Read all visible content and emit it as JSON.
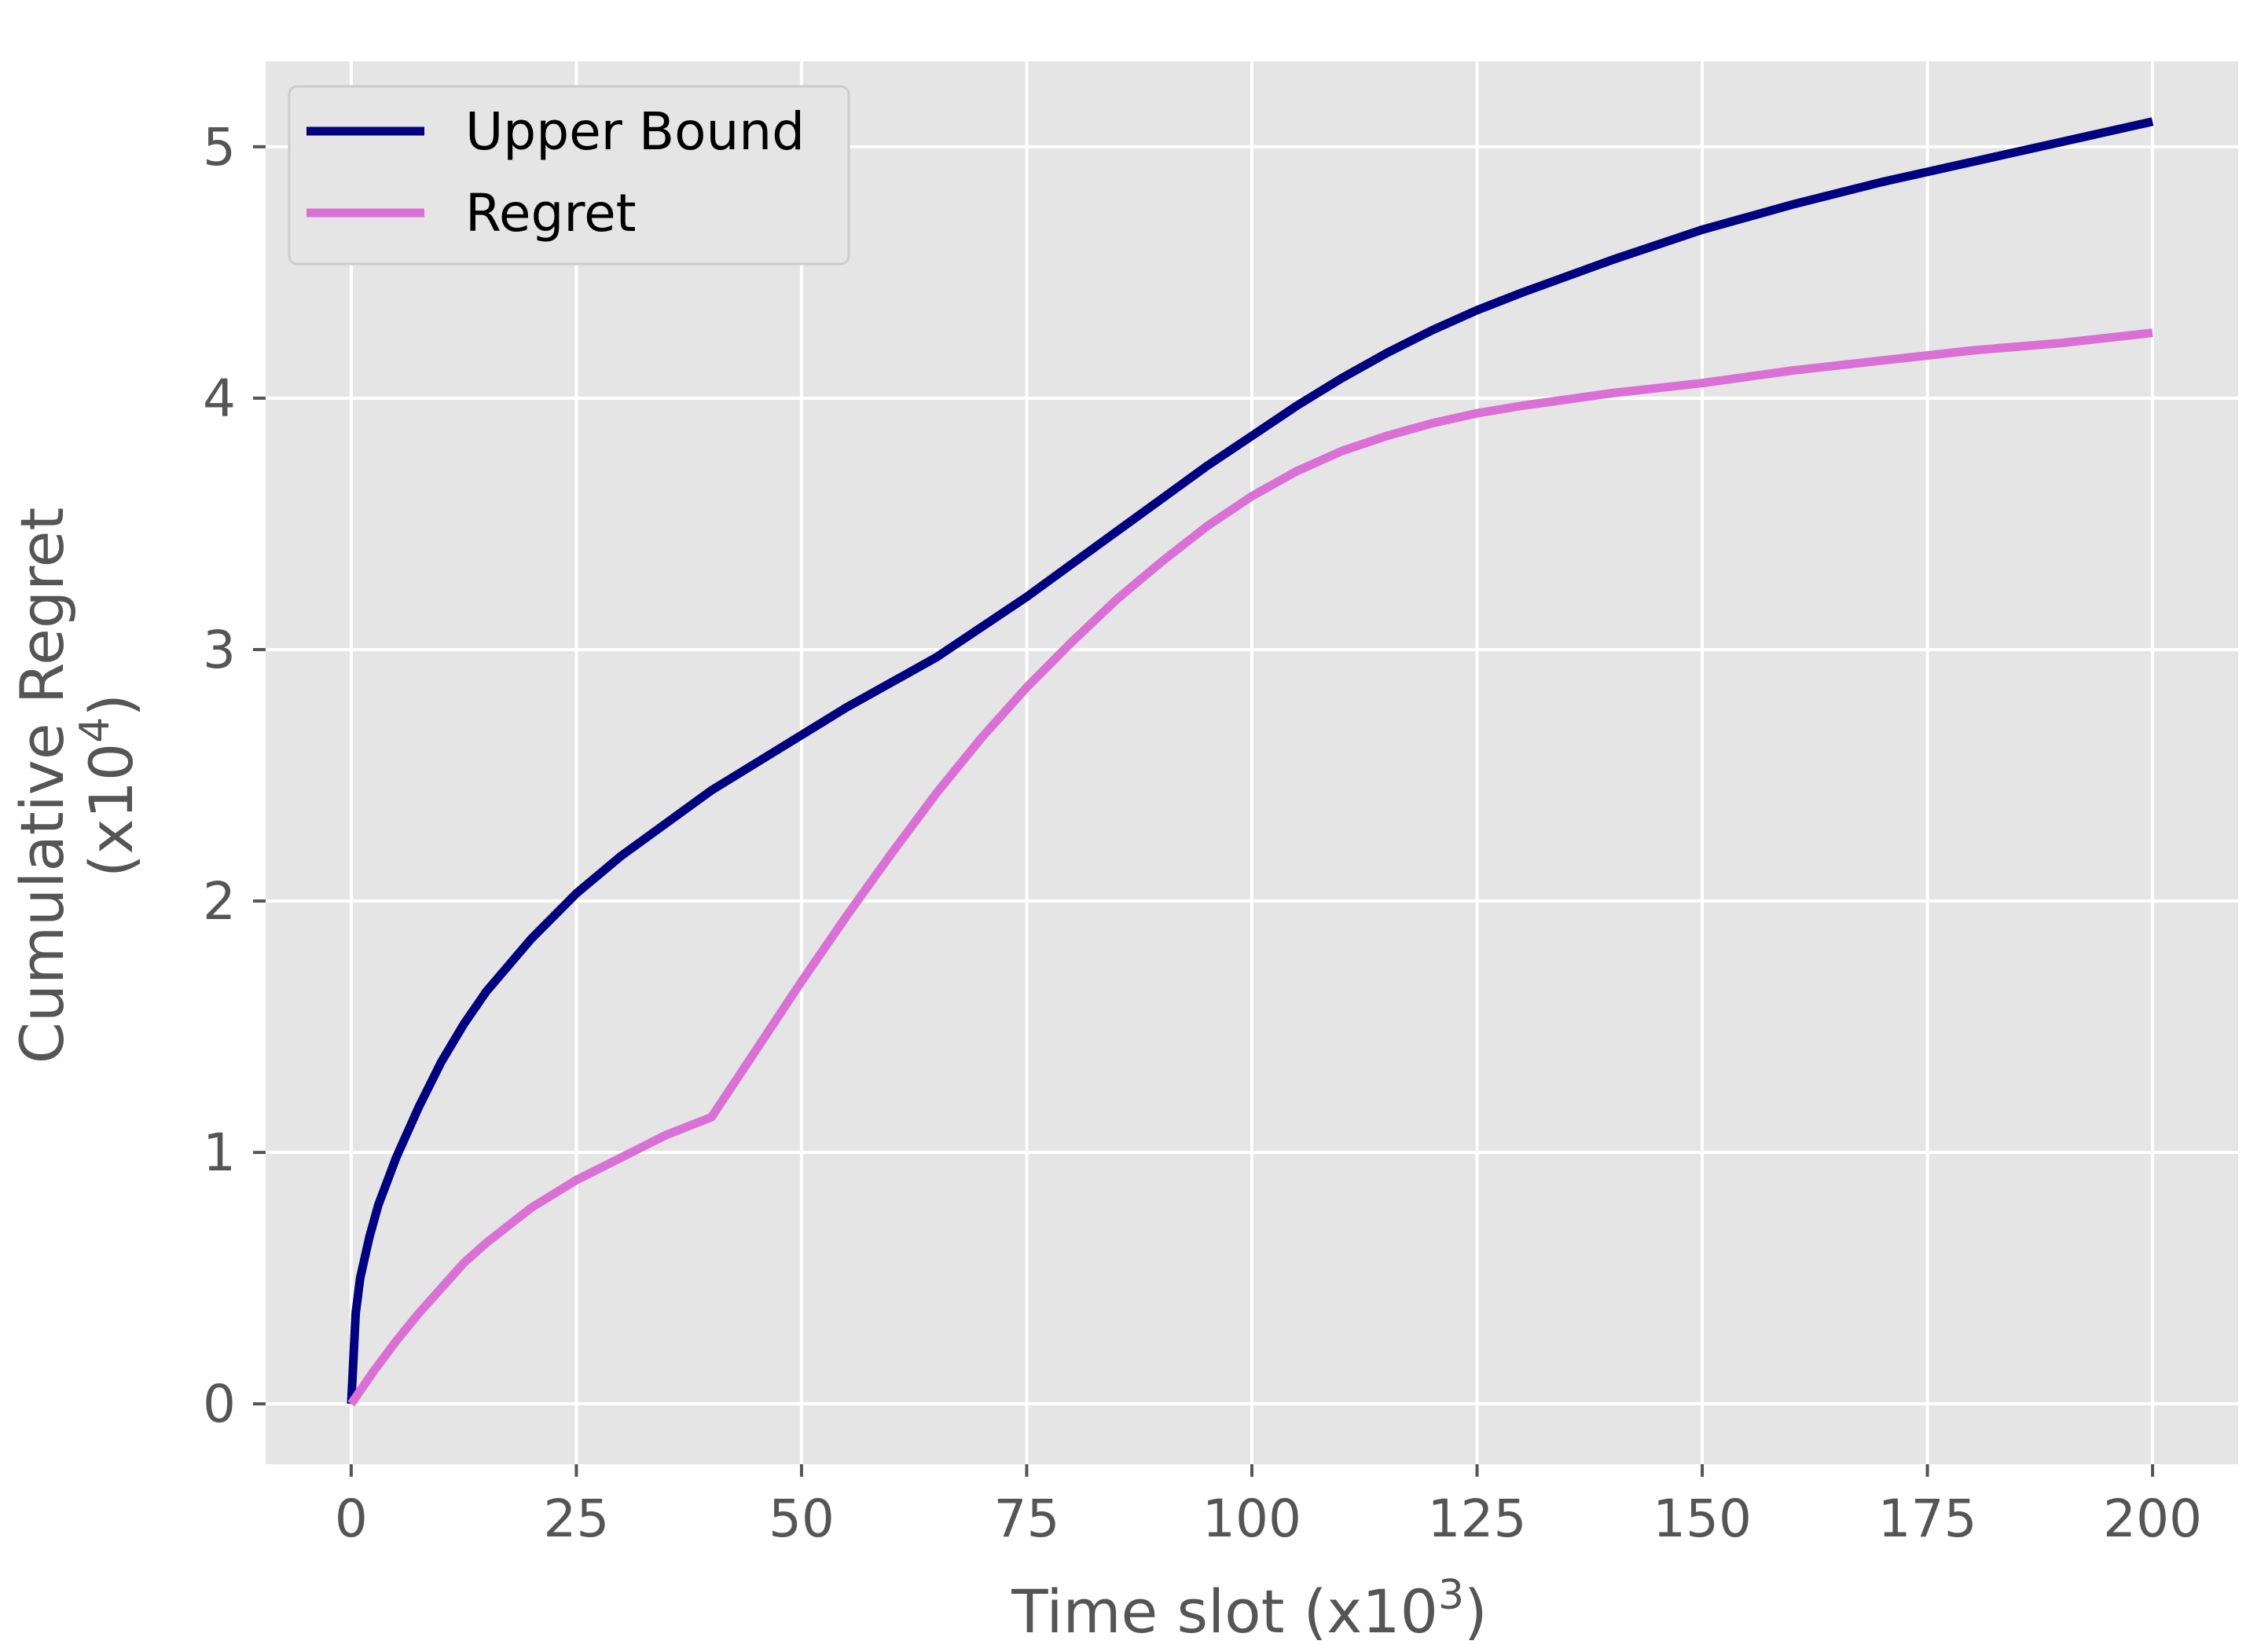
{
  "chart_data": {
    "type": "line",
    "title": "",
    "xlabel": "Time slot (x10",
    "xlabel_exp": "3",
    "xlabel_close": ")",
    "ylabel_line1": "Cumulative Regret",
    "ylabel_line2": "(x10",
    "ylabel_exp": "4",
    "ylabel_close": ")",
    "xlim": [
      -9.5,
      209.5
    ],
    "ylim": [
      -0.24,
      5.34
    ],
    "xticks": [
      0,
      25,
      50,
      75,
      100,
      125,
      150,
      175,
      200
    ],
    "xtick_labels": [
      "0",
      "25",
      "50",
      "75",
      "100",
      "125",
      "150",
      "175",
      "200"
    ],
    "yticks": [
      0,
      1,
      2,
      3,
      4,
      5
    ],
    "ytick_labels": [
      "0",
      "1",
      "2",
      "3",
      "4",
      "5"
    ],
    "grid": true,
    "legend_position": "top-left",
    "series": [
      {
        "name": "Upper Bound",
        "color": "#000080",
        "x": [
          0,
          0.5,
          1,
          2,
          3,
          5,
          7.5,
          10,
          12.5,
          15,
          20,
          25,
          30,
          35,
          40,
          45,
          50,
          55,
          60,
          65,
          70,
          75,
          80,
          85,
          90,
          95,
          100,
          105,
          110,
          115,
          120,
          125,
          130,
          140,
          150,
          160,
          170,
          180,
          190,
          200
        ],
        "y": [
          0,
          0.36,
          0.5,
          0.66,
          0.79,
          0.98,
          1.18,
          1.36,
          1.51,
          1.64,
          1.85,
          2.03,
          2.18,
          2.31,
          2.44,
          2.55,
          2.66,
          2.77,
          2.87,
          2.97,
          3.09,
          3.21,
          3.34,
          3.47,
          3.6,
          3.73,
          3.85,
          3.97,
          4.08,
          4.18,
          4.27,
          4.35,
          4.42,
          4.55,
          4.67,
          4.77,
          4.86,
          4.94,
          5.02,
          5.1
        ]
      },
      {
        "name": "Regret",
        "color": "#da70d6",
        "x": [
          0,
          2.5,
          5,
          7.5,
          10,
          12.5,
          15,
          20,
          25,
          30,
          35,
          40,
          45,
          50,
          55,
          60,
          65,
          70,
          75,
          80,
          85,
          90,
          95,
          100,
          105,
          110,
          115,
          120,
          125,
          130,
          140,
          150,
          160,
          170,
          180,
          190,
          200
        ],
        "y": [
          0,
          0.13,
          0.25,
          0.36,
          0.46,
          0.56,
          0.64,
          0.78,
          0.89,
          0.98,
          1.07,
          1.14,
          1.41,
          1.68,
          1.94,
          2.19,
          2.43,
          2.65,
          2.85,
          3.03,
          3.2,
          3.35,
          3.49,
          3.61,
          3.71,
          3.79,
          3.85,
          3.9,
          3.94,
          3.97,
          4.02,
          4.06,
          4.11,
          4.15,
          4.19,
          4.22,
          4.26
        ]
      }
    ]
  }
}
